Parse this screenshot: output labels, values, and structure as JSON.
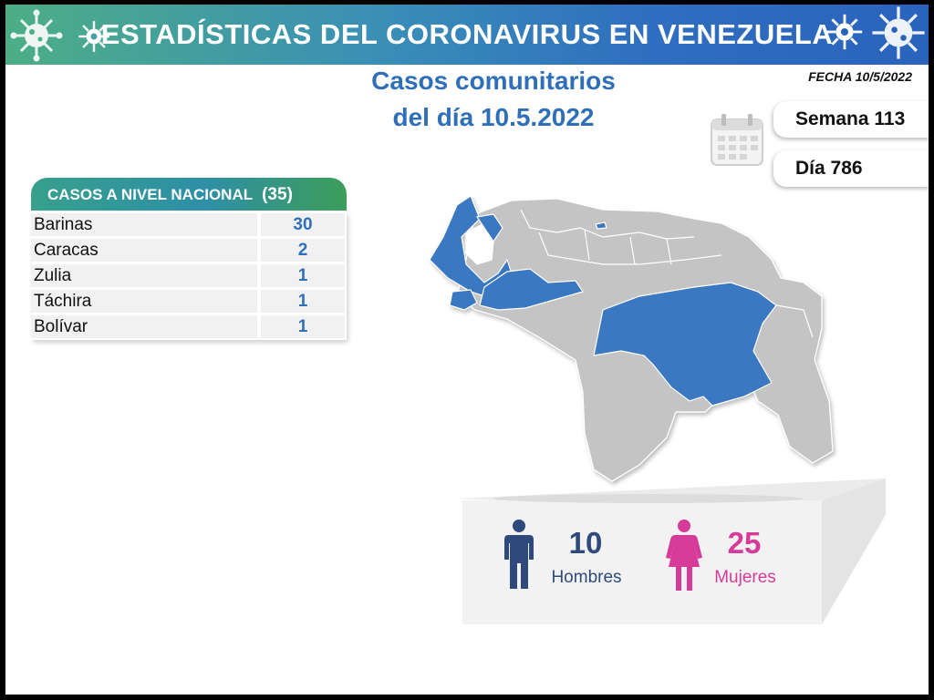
{
  "header": {
    "title": "ESTADÍSTICAS DEL CORONAVIRUS EN VENEZUELA",
    "date_label": "FECHA 10/5/2022"
  },
  "subtitle": {
    "line1": "Casos comunitarios",
    "line2": "del día 10.5.2022"
  },
  "period": {
    "week_label": "Semana 113",
    "day_label": "Día 786"
  },
  "national_table": {
    "header_label": "CASOS A NIVEL NACIONAL",
    "total": "(35)",
    "rows": [
      {
        "state": "Barinas",
        "cases": "30"
      },
      {
        "state": "Caracas",
        "cases": "2"
      },
      {
        "state": "Zulia",
        "cases": "1"
      },
      {
        "state": "Táchira",
        "cases": "1"
      },
      {
        "state": "Bolívar",
        "cases": "1"
      }
    ]
  },
  "gender": {
    "men_count": "10",
    "men_label": "Hombres",
    "women_count": "25",
    "women_label": "Mujeres"
  },
  "colors": {
    "highlight_state": "#3a78c2",
    "other_state": "#c4c4c4",
    "accent_blue": "#2e6fb8",
    "men": "#2e4a7d",
    "women": "#d63b9a"
  },
  "icons": [
    "virus-icon",
    "calendar-icon",
    "man-icon",
    "woman-icon"
  ]
}
